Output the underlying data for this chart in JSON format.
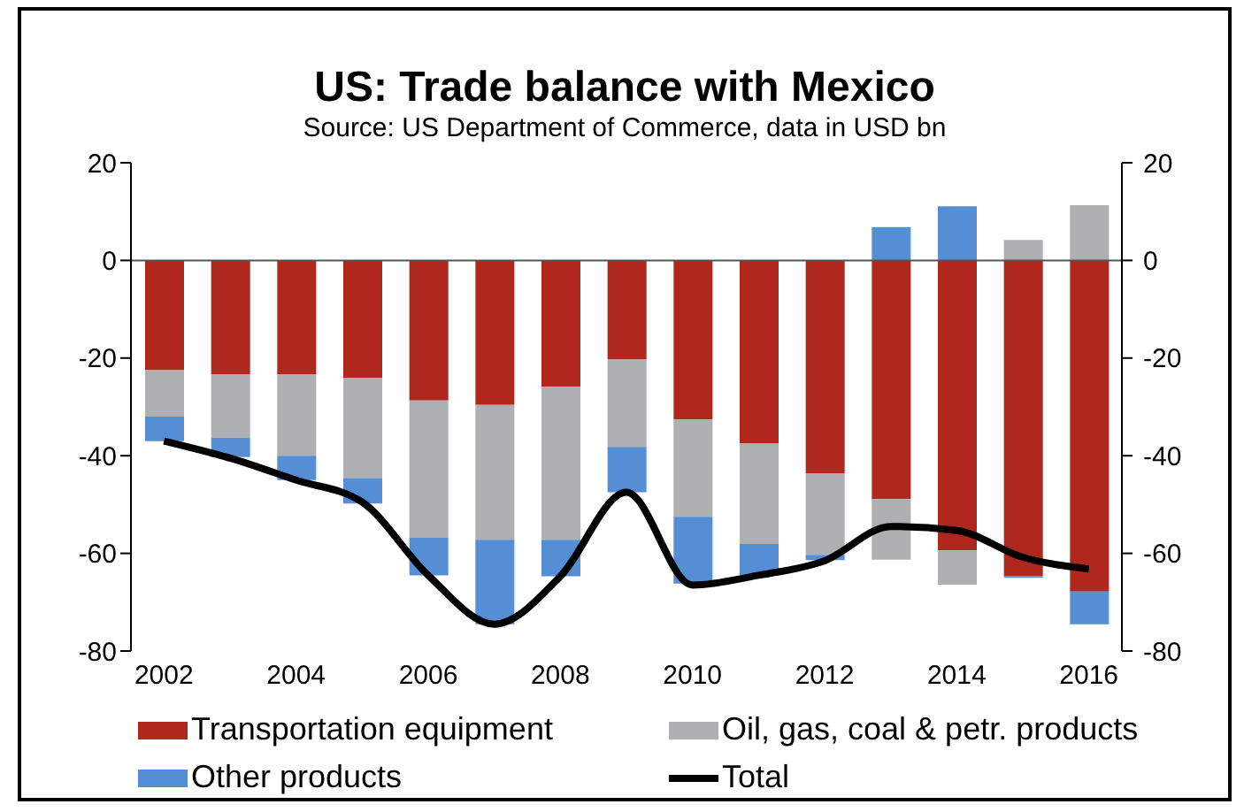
{
  "chart_data": {
    "type": "bar",
    "title": "US: Trade balance with Mexico",
    "subtitle": "Source: US Department of Commerce, data in USD bn",
    "categories": [
      "2002",
      null,
      "2004",
      null,
      "2006",
      null,
      "2008",
      null,
      "2010",
      null,
      "2012",
      null,
      "2014",
      null,
      "2016"
    ],
    "stacked": true,
    "series": [
      {
        "name": "Transportation equipment",
        "color": "#b0271e",
        "values": [
          -22.5,
          -23.3,
          -23.3,
          -24,
          -28.7,
          -29.6,
          -25.9,
          -20.3,
          -32.6,
          -37.5,
          -43.6,
          -48.9,
          -59.4,
          -64.7,
          -67.8
        ]
      },
      {
        "name": "Oil, gas, coal & petr. products",
        "color": "#aeafb1",
        "values": [
          -9.5,
          -13,
          -16.7,
          -20.6,
          -28.1,
          -27.6,
          -31.3,
          -17.9,
          -19.9,
          -20.6,
          -16.7,
          -12.4,
          -7,
          4.2,
          11.3
        ]
      },
      {
        "name": "Other products",
        "color": "#558ed5",
        "values": [
          -5,
          -4,
          -5,
          -5.2,
          -7.7,
          -17.3,
          -7.5,
          -9.3,
          -13.7,
          -6.4,
          -1.1,
          6.8,
          11.1,
          -0.3,
          -6.7
        ]
      },
      {
        "name": "Total",
        "type": "line",
        "color": "#000000",
        "values": [
          -37,
          -40.5,
          -45,
          -49.5,
          -64.5,
          -74.5,
          -64.7,
          -47.5,
          -66.5,
          -64.5,
          -61.5,
          -54.5,
          -55.3,
          -60.8,
          -63.2
        ]
      }
    ],
    "ylim": [
      -80,
      20
    ],
    "yticks": [
      -80,
      -60,
      -40,
      -20,
      0,
      20
    ],
    "y2lim": [
      -80,
      20
    ],
    "y2ticks": [
      -80,
      -60,
      -40,
      -20,
      0,
      20
    ],
    "ref_lines": [
      {
        "axis": "y",
        "value": 0,
        "color": "#555555"
      }
    ],
    "legend": "bottom",
    "marker": "none",
    "line_style": "solid"
  }
}
